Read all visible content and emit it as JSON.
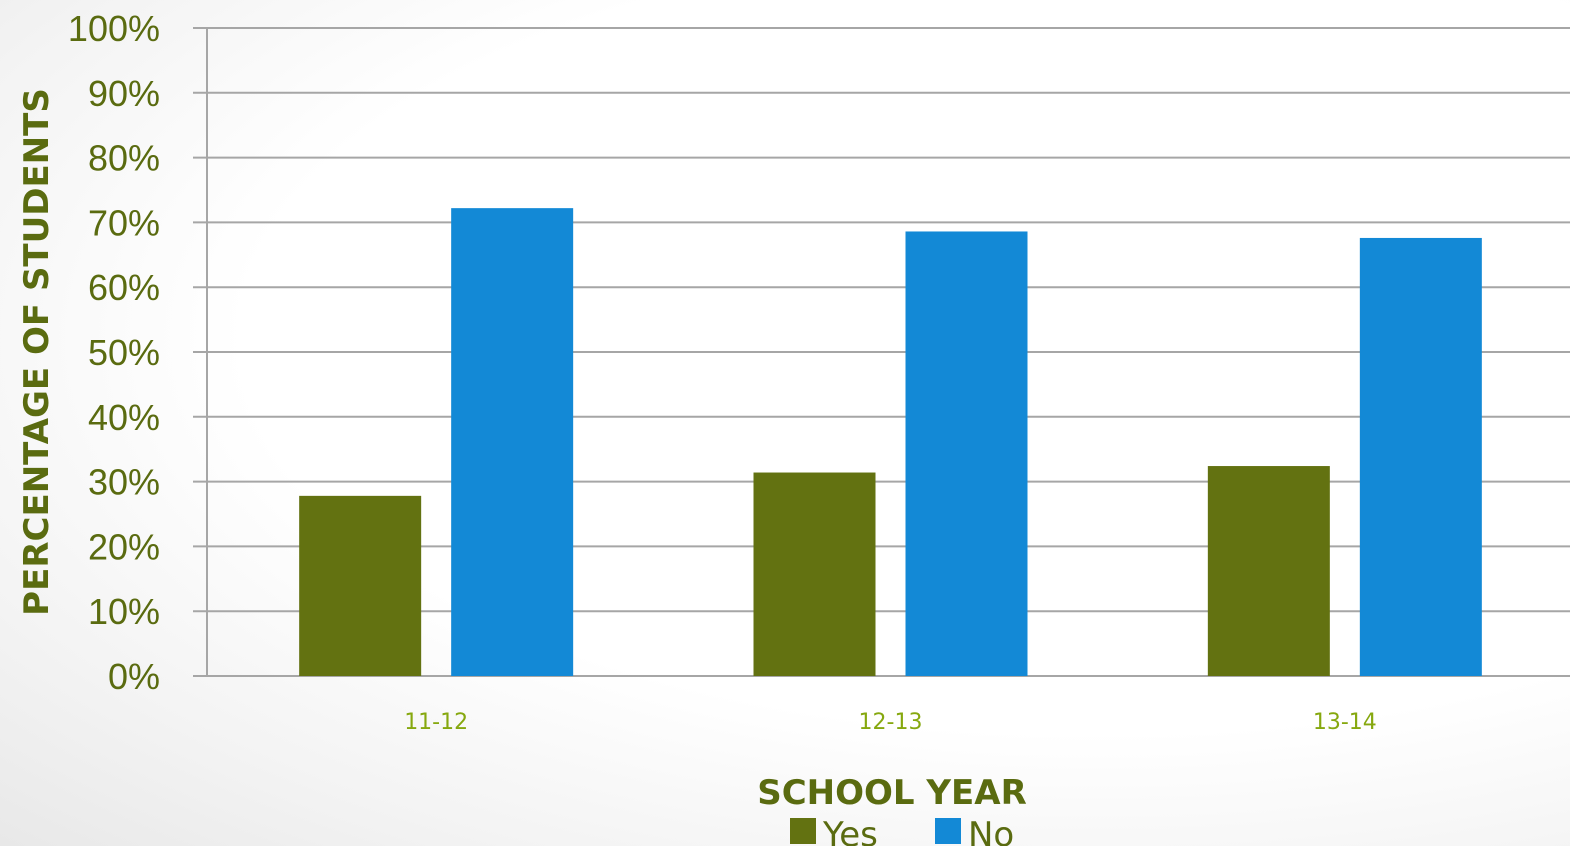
{
  "chart_data": {
    "type": "bar",
    "categories": [
      "11-12",
      "12-13",
      "13-14"
    ],
    "series": [
      {
        "name": "Yes",
        "values": [
          27.8,
          31.4,
          32.4
        ],
        "color": "#637211"
      },
      {
        "name": "No",
        "values": [
          72.2,
          68.6,
          67.6
        ],
        "color": "#1389d6"
      }
    ],
    "ylim": [
      0,
      100
    ],
    "yticks": [
      "0%",
      "10%",
      "20%",
      "30%",
      "40%",
      "50%",
      "60%",
      "70%",
      "80%",
      "90%",
      "100%"
    ],
    "xlabel": "SCHOOL YEAR",
    "ylabel": "PERCENTAGE  OF STUDENTS",
    "grid": true,
    "legend_position": "bottom",
    "colors": {
      "tick_text": "#5a6b10",
      "category_text": "#86a80f",
      "axis_title": "#5a6b10",
      "grid": "#a6a6a6"
    }
  }
}
